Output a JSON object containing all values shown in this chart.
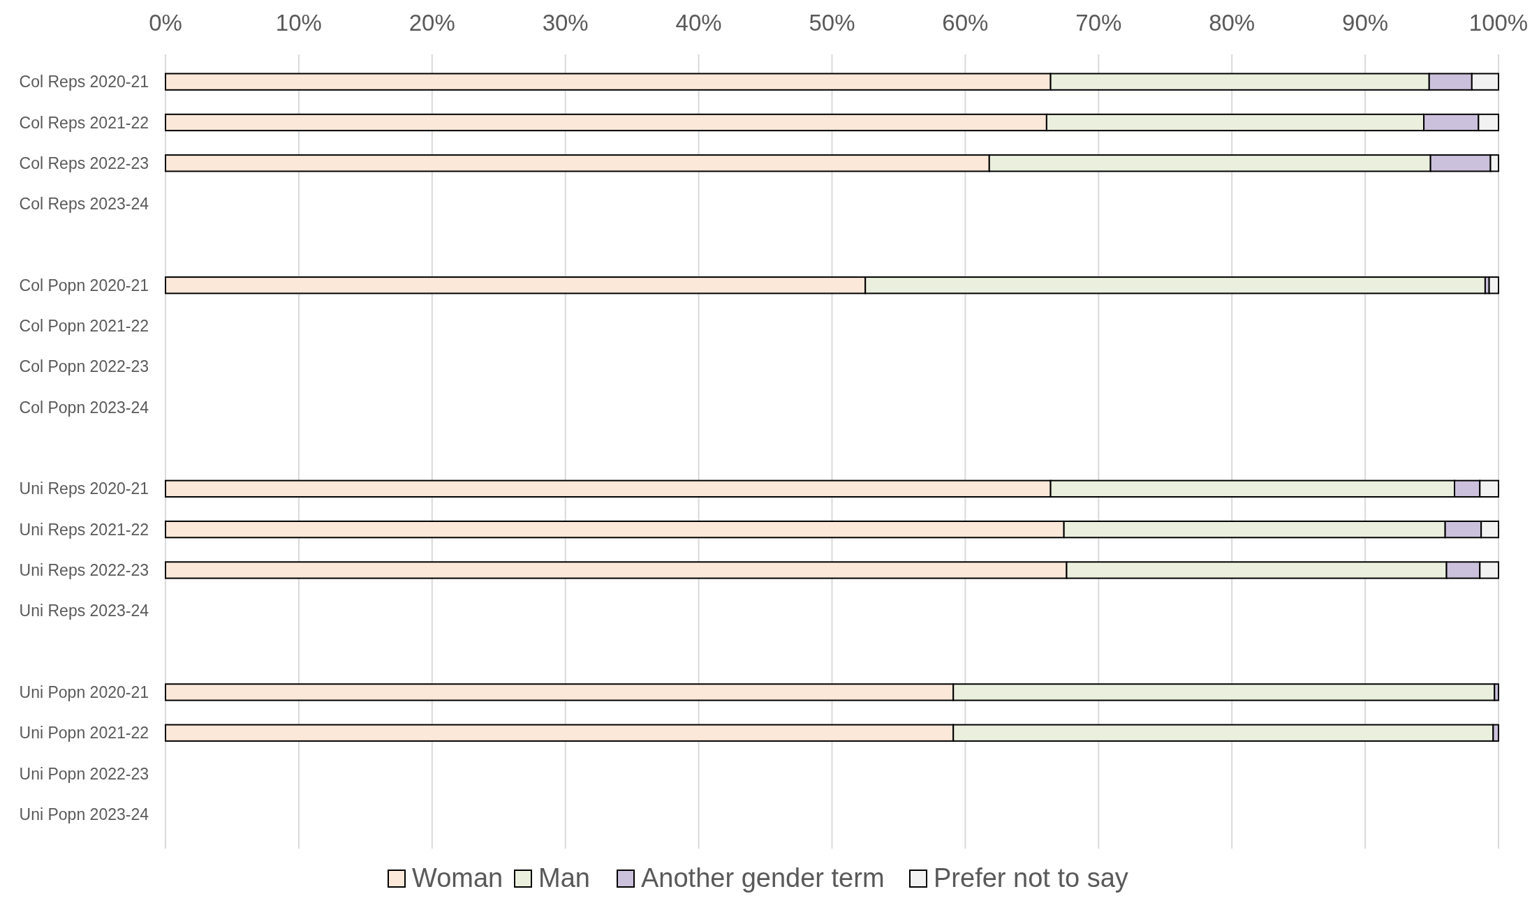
{
  "chart_data": {
    "type": "bar",
    "orientation": "horizontal",
    "stacked": true,
    "categories": [
      "Col Reps 2020-21",
      "Col Reps 2021-22",
      "Col Reps 2022-23",
      "Col Reps 2023-24",
      null,
      "Col Popn 2020-21",
      "Col Popn 2021-22",
      "Col Popn 2022-23",
      "Col Popn 2023-24",
      null,
      "Uni Reps 2020-21",
      "Uni Reps 2021-22",
      "Uni Reps 2022-23",
      "Uni Reps 2023-24",
      null,
      "Uni Popn 2020-21",
      "Uni Popn 2021-22",
      "Uni Popn 2022-23",
      "Uni Popn 2023-24"
    ],
    "series": [
      {
        "name": "Woman",
        "color": "#fce8d9",
        "values": [
          66.4,
          66.1,
          61.8,
          null,
          null,
          52.5,
          null,
          null,
          null,
          null,
          66.4,
          67.4,
          67.6,
          null,
          null,
          59.1,
          59.1,
          null,
          null
        ]
      },
      {
        "name": "Man",
        "color": "#ebf0de",
        "values": [
          28.4,
          28.3,
          33.1,
          null,
          null,
          46.5,
          null,
          null,
          null,
          null,
          30.3,
          28.6,
          28.5,
          null,
          null,
          40.6,
          40.5,
          null,
          null
        ]
      },
      {
        "name": "Another gender term",
        "color": "#ccc1dc",
        "values": [
          3.2,
          4.1,
          4.5,
          null,
          null,
          0.3,
          null,
          null,
          null,
          null,
          1.9,
          2.7,
          2.5,
          null,
          null,
          0.3,
          0.4,
          null,
          null
        ]
      },
      {
        "name": "Prefer not to say",
        "color": "#f2f2f2",
        "values": [
          2.0,
          1.5,
          0.6,
          null,
          null,
          0.7,
          null,
          null,
          null,
          null,
          1.4,
          1.3,
          1.4,
          null,
          null,
          0,
          0,
          null,
          null
        ]
      }
    ],
    "xlim": [
      0,
      100
    ],
    "xticks": [
      {
        "value": 0,
        "label": "0%"
      },
      {
        "value": 10,
        "label": "10%"
      },
      {
        "value": 20,
        "label": "20%"
      },
      {
        "value": 30,
        "label": "30%"
      },
      {
        "value": 40,
        "label": "40%"
      },
      {
        "value": 50,
        "label": "50%"
      },
      {
        "value": 60,
        "label": "60%"
      },
      {
        "value": 70,
        "label": "70%"
      },
      {
        "value": 80,
        "label": "80%"
      },
      {
        "value": 90,
        "label": "90%"
      },
      {
        "value": 100,
        "label": "100%"
      }
    ],
    "grid": "x",
    "legend": "bottom"
  }
}
